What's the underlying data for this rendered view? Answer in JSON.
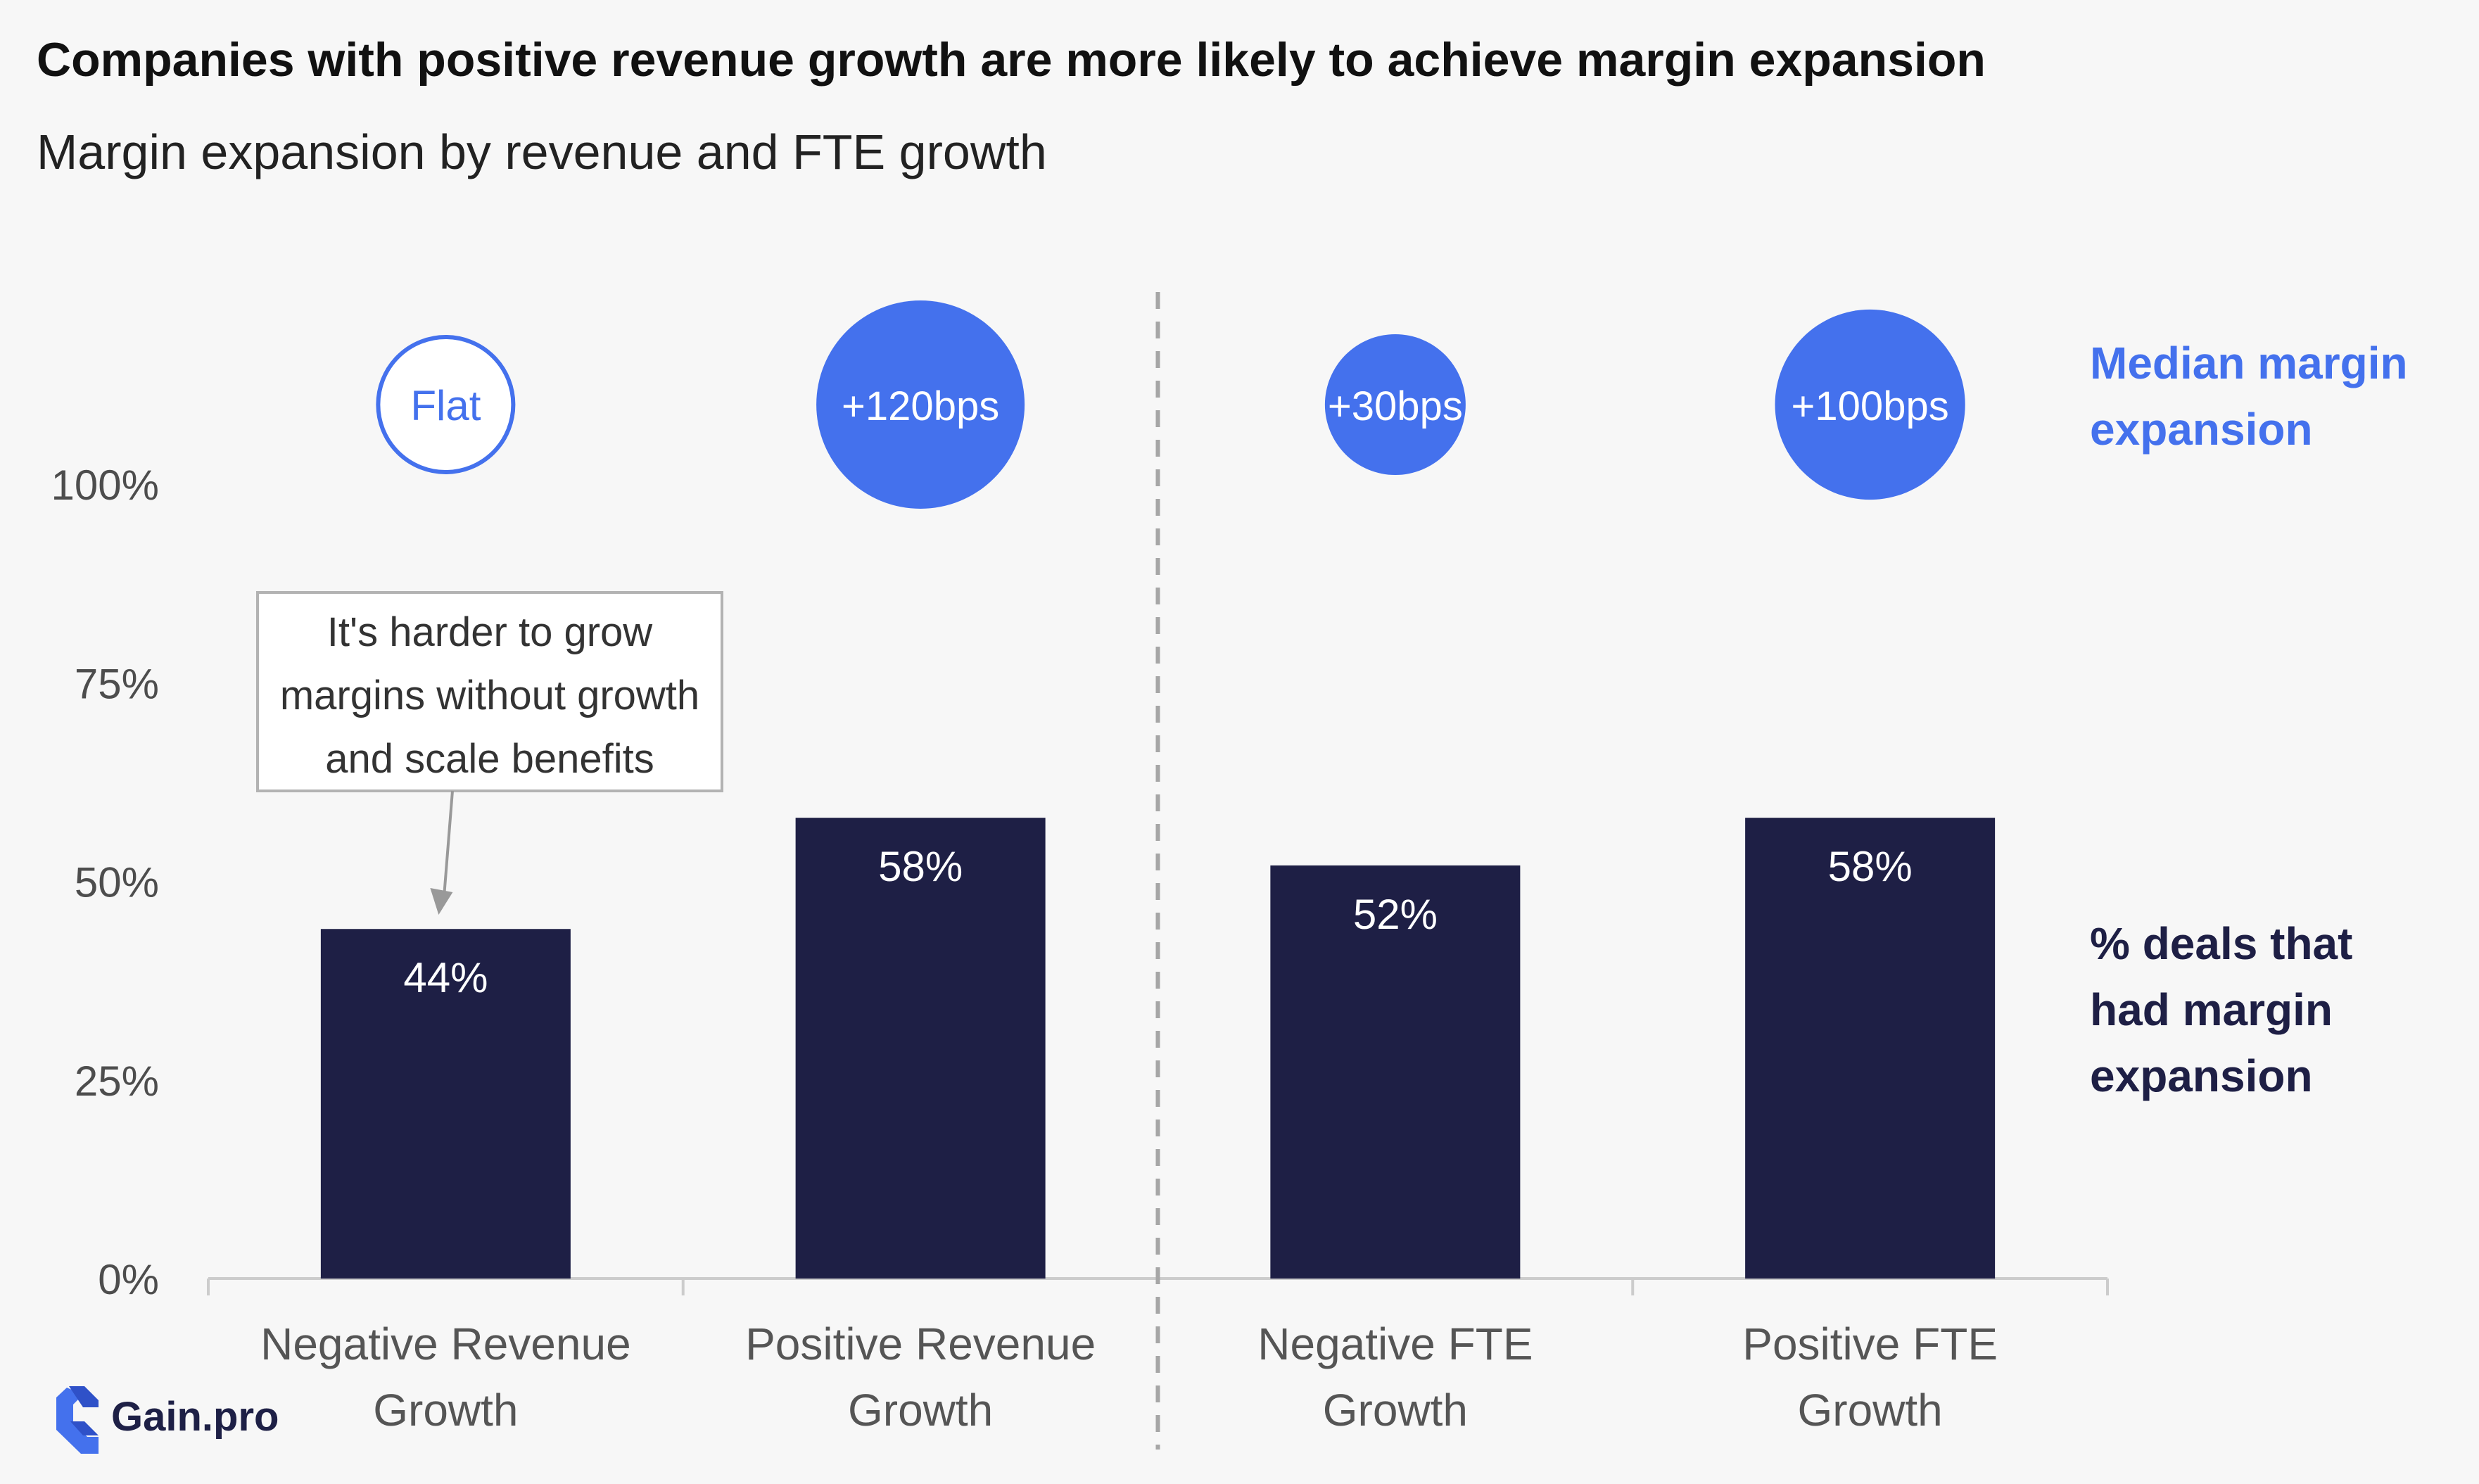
{
  "chart_data": {
    "type": "bar",
    "title": "Companies with positive revenue growth are more likely to achieve margin expansion",
    "subtitle": "Margin expansion by revenue and FTE growth",
    "categories": [
      [
        "Negative Revenue",
        "Growth"
      ],
      [
        "Positive Revenue",
        "Growth"
      ],
      [
        "Negative FTE",
        "Growth"
      ],
      [
        "Positive FTE",
        "Growth"
      ]
    ],
    "values": [
      44,
      58,
      52,
      58
    ],
    "value_labels": [
      "44%",
      "58%",
      "52%",
      "58%"
    ],
    "yticks": [
      0,
      25,
      50,
      75,
      100
    ],
    "ytick_labels": [
      "0%",
      "25%",
      "50%",
      "75%",
      "100%"
    ],
    "ylim": [
      0,
      100
    ],
    "median_margin_expansion": {
      "labels": [
        "Flat",
        "+120bps",
        "+30bps",
        "+100bps"
      ],
      "bps": [
        0,
        120,
        30,
        100
      ]
    },
    "side_labels": {
      "bubbles": [
        "Median margin",
        "expansion"
      ],
      "bars": [
        "%  deals that",
        "had margin",
        "expansion"
      ]
    },
    "annotation": {
      "lines": [
        "It's harder to grow",
        "margins without growth",
        "and scale benefits"
      ],
      "target_category": 0
    },
    "colors": {
      "bar": "#1e1f45",
      "bubble": "#4471ed",
      "accent_text": "#4471ed",
      "axis": "#cccccc",
      "divider": "#a6a6a6"
    },
    "grid": false
  },
  "brand": {
    "name": "Gain.pro"
  }
}
